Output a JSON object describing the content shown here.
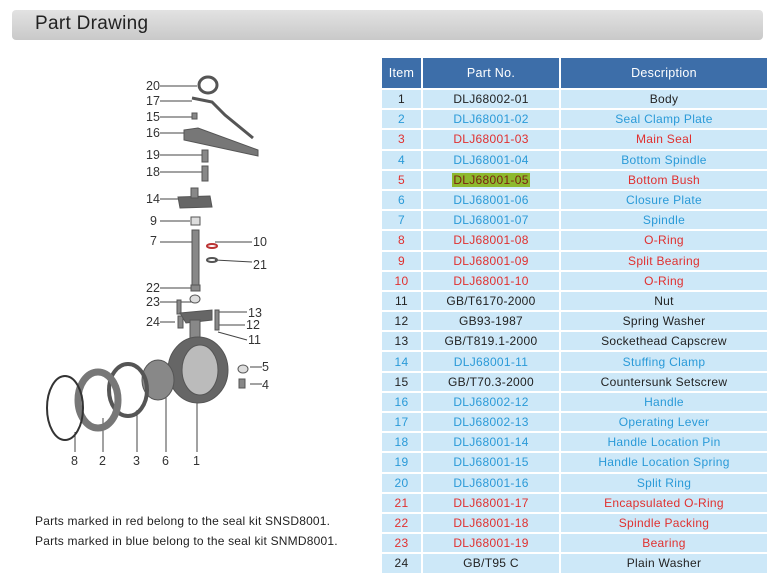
{
  "title": "Part Drawing",
  "table": {
    "headers": [
      "Item",
      "Part No.",
      "Description"
    ],
    "rows": [
      {
        "item": "1",
        "part": "DLJ68002-01",
        "desc": "Body",
        "color": "black"
      },
      {
        "item": "2",
        "part": "DLJ68001-02",
        "desc": "Seal Clamp Plate",
        "color": "blue"
      },
      {
        "item": "3",
        "part": "DLJ68001-03",
        "desc": "Main Seal",
        "color": "red"
      },
      {
        "item": "4",
        "part": "DLJ68001-04",
        "desc": "Bottom Spindle",
        "color": "blue"
      },
      {
        "item": "5",
        "part": "DLJ68001-05",
        "desc": "Bottom Bush",
        "color": "red",
        "highlight": true
      },
      {
        "item": "6",
        "part": "DLJ68001-06",
        "desc": "Closure Plate",
        "color": "blue"
      },
      {
        "item": "7",
        "part": "DLJ68001-07",
        "desc": "Spindle",
        "color": "blue"
      },
      {
        "item": "8",
        "part": "DLJ68001-08",
        "desc": "O-Ring",
        "color": "red"
      },
      {
        "item": "9",
        "part": "DLJ68001-09",
        "desc": "Split Bearing",
        "color": "red"
      },
      {
        "item": "10",
        "part": "DLJ68001-10",
        "desc": "O-Ring",
        "color": "red"
      },
      {
        "item": "11",
        "part": "GB/T6170-2000",
        "desc": "Nut",
        "color": "black"
      },
      {
        "item": "12",
        "part": "GB93-1987",
        "desc": "Spring Washer",
        "color": "black"
      },
      {
        "item": "13",
        "part": "GB/T819.1-2000",
        "desc": "Sockethead Capscrew",
        "color": "black"
      },
      {
        "item": "14",
        "part": "DLJ68001-11",
        "desc": "Stuffing Clamp",
        "color": "blue"
      },
      {
        "item": "15",
        "part": "GB/T70.3-2000",
        "desc": "Countersunk Setscrew",
        "color": "black"
      },
      {
        "item": "16",
        "part": "DLJ68002-12",
        "desc": "Handle",
        "color": "blue"
      },
      {
        "item": "17",
        "part": "DLJ68002-13",
        "desc": "Operating Lever",
        "color": "blue"
      },
      {
        "item": "18",
        "part": "DLJ68001-14",
        "desc": "Handle Location Pin",
        "color": "blue"
      },
      {
        "item": "19",
        "part": "DLJ68001-15",
        "desc": "Handle Location Spring",
        "color": "blue"
      },
      {
        "item": "20",
        "part": "DLJ68001-16",
        "desc": "Split Ring",
        "color": "blue"
      },
      {
        "item": "21",
        "part": "DLJ68001-17",
        "desc": "Encapsulated O-Ring",
        "color": "red"
      },
      {
        "item": "22",
        "part": "DLJ68001-18",
        "desc": "Spindle Packing",
        "color": "red"
      },
      {
        "item": "23",
        "part": "DLJ68001-19",
        "desc": "Bearing",
        "color": "red"
      },
      {
        "item": "24",
        "part": "GB/T95 C",
        "desc": "Plain Washer",
        "color": "black"
      }
    ]
  },
  "drawing": {
    "labels": [
      "20",
      "17",
      "15",
      "16",
      "19",
      "18",
      "14",
      "9",
      "7",
      "10",
      "21",
      "22",
      "23",
      "24",
      "13",
      "12",
      "11",
      "5",
      "4",
      "8",
      "2",
      "3",
      "6",
      "1"
    ]
  },
  "notes": [
    "Parts marked in red  belong to the seal kit SNSD8001.",
    "Parts marked in blue  belong to the seal kit SNMD8001."
  ],
  "colors": {
    "black": "#222222",
    "blue": "#2a9ad8",
    "red": "#e0302f",
    "header": "#3d6ea9",
    "row": "#cde8f8",
    "highlight": "#8db92e"
  }
}
